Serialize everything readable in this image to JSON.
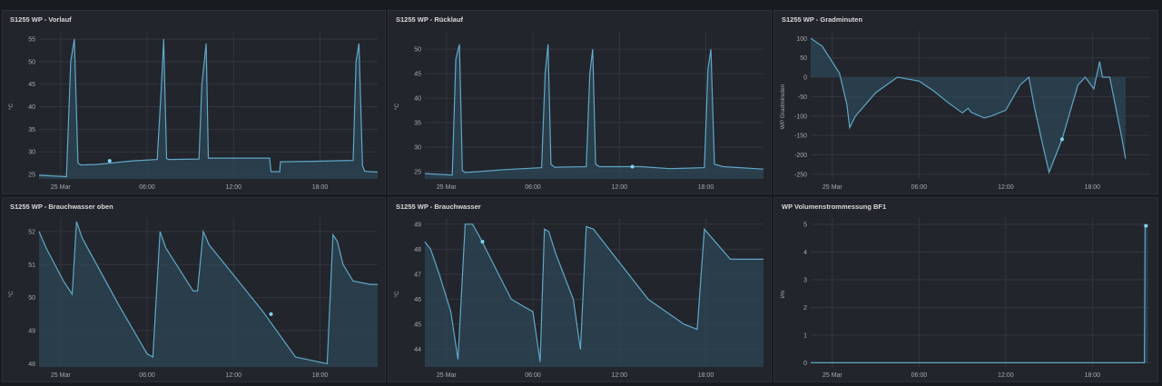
{
  "colors": {
    "line": "#5ea8c9",
    "fill": "#2e4655",
    "grid": "#32363d",
    "background": "#181b1f",
    "panel": "#22252b"
  },
  "x_tick_labels": [
    "25 Mar",
    "06:00",
    "12:00",
    "18:00"
  ],
  "panels": [
    {
      "title": "S1255 WP - Vorlauf",
      "chart_data": {
        "type": "area",
        "title": "S1255 WP - Vorlauf",
        "ylabel": "°C",
        "ylim": [
          24,
          56
        ],
        "y_ticks": [
          25,
          30,
          35,
          40,
          45,
          50,
          55
        ],
        "xlim": [
          -1.5,
          22
        ],
        "x_ticks": [
          {
            "x": 0,
            "label": "25 Mar"
          },
          {
            "x": 6,
            "label": "06:00"
          },
          {
            "x": 12,
            "label": "12:00"
          },
          {
            "x": 18,
            "label": "18:00"
          }
        ],
        "marker": {
          "x": 3.4,
          "y": 28
        },
        "x": [
          -1.5,
          0.4,
          0.7,
          0.95,
          1.2,
          1.4,
          2.5,
          5.0,
          6.7,
          7.0,
          7.15,
          7.35,
          7.5,
          9.6,
          9.8,
          10.1,
          10.25,
          10.35,
          14.5,
          14.6,
          15.2,
          15.25,
          17.5,
          20.3,
          20.5,
          20.7,
          20.95,
          21.1,
          22
        ],
        "values": [
          24.8,
          24.5,
          50,
          55,
          27.5,
          27.1,
          27.2,
          28.0,
          28.3,
          45,
          55,
          28.5,
          28.3,
          28.4,
          45,
          54,
          28.6,
          28.6,
          28.6,
          25.6,
          25.6,
          27.8,
          27.9,
          28.1,
          50,
          54,
          27.0,
          25.7,
          25.5
        ]
      }
    },
    {
      "title": "S1255 WP - Rücklauf",
      "chart_data": {
        "type": "area",
        "title": "S1255 WP - Rücklauf",
        "ylabel": "°C",
        "ylim": [
          23.5,
          53
        ],
        "y_ticks": [
          25,
          30,
          35,
          40,
          45,
          50
        ],
        "xlim": [
          -1.5,
          22
        ],
        "x_ticks": [
          {
            "x": 0,
            "label": "25 Mar"
          },
          {
            "x": 6,
            "label": "06:00"
          },
          {
            "x": 12,
            "label": "12:00"
          },
          {
            "x": 18,
            "label": "18:00"
          }
        ],
        "marker": {
          "x": 12.9,
          "y": 26
        },
        "x": [
          -1.5,
          0.4,
          0.65,
          0.9,
          1.1,
          1.3,
          4.0,
          6.6,
          6.85,
          7.05,
          7.25,
          7.5,
          9.7,
          9.95,
          10.15,
          10.35,
          10.6,
          13.5,
          15.5,
          17.9,
          18.15,
          18.35,
          18.6,
          19.2,
          22
        ],
        "values": [
          24.6,
          24.3,
          48,
          51,
          25.2,
          24.8,
          25.4,
          25.8,
          45,
          51,
          26.5,
          25.9,
          26.0,
          45,
          50,
          26.5,
          26.0,
          26.0,
          25.6,
          25.8,
          46,
          50,
          26.5,
          26.0,
          25.5
        ]
      }
    },
    {
      "title": "S1255 WP - Gradminuten",
      "chart_data": {
        "type": "area",
        "title": "S1255 WP - Gradminuten",
        "ylabel": "WP Gradminuten",
        "ylim": [
          -262,
          110
        ],
        "y_ticks": [
          100,
          50,
          0,
          -50,
          -100,
          -150,
          -200,
          -250
        ],
        "xlim": [
          -1.5,
          22
        ],
        "x_ticks": [
          {
            "x": 0,
            "label": "25 Mar"
          },
          {
            "x": 6,
            "label": "06:00"
          },
          {
            "x": 12,
            "label": "12:00"
          },
          {
            "x": 18,
            "label": "18:00"
          }
        ],
        "marker": {
          "x": 15.9,
          "y": -160
        },
        "x": [
          -1.5,
          -0.7,
          0.5,
          1.0,
          1.2,
          1.6,
          3.0,
          4.5,
          6.0,
          7.0,
          8.0,
          9.0,
          9.4,
          9.6,
          10.5,
          11.0,
          12.0,
          13.0,
          13.6,
          14.0,
          14.6,
          15.0,
          15.9,
          17.0,
          17.5,
          18.1,
          18.5,
          18.7,
          19.2,
          20.0,
          20.3
        ],
        "values": [
          100,
          80,
          10,
          -70,
          -130,
          -100,
          -40,
          0,
          -10,
          -35,
          -65,
          -92,
          -80,
          -90,
          -105,
          -100,
          -85,
          -20,
          0,
          -80,
          -180,
          -245,
          -160,
          -20,
          0,
          -30,
          40,
          0,
          0,
          -150,
          -210
        ]
      }
    },
    {
      "title": "S1255 WP - Brauchwasser oben",
      "chart_data": {
        "type": "area",
        "title": "S1255 WP - Brauchwasser oben",
        "ylabel": "°C",
        "ylim": [
          47.9,
          52.3
        ],
        "y_ticks": [
          48,
          49,
          50,
          51,
          52
        ],
        "xlim": [
          -1.5,
          22
        ],
        "x_ticks": [
          {
            "x": 0,
            "label": "25 Mar"
          },
          {
            "x": 6,
            "label": "06:00"
          },
          {
            "x": 12,
            "label": "12:00"
          },
          {
            "x": 18,
            "label": "18:00"
          }
        ],
        "marker": {
          "x": 14.6,
          "y": 49.5
        },
        "x": [
          -1.5,
          -1.0,
          0.2,
          0.8,
          1.1,
          1.5,
          4.0,
          6.0,
          6.4,
          6.9,
          7.3,
          9.2,
          9.5,
          9.9,
          10.3,
          14.0,
          16.3,
          18.5,
          18.9,
          19.2,
          19.6,
          20.3,
          21.5,
          22
        ],
        "values": [
          52.0,
          51.5,
          50.5,
          50.1,
          52.3,
          51.8,
          49.8,
          48.3,
          48.2,
          52.0,
          51.5,
          50.2,
          50.2,
          52.0,
          51.6,
          49.6,
          48.2,
          48.0,
          51.9,
          51.7,
          51.0,
          50.5,
          50.4,
          50.4
        ]
      }
    },
    {
      "title": "S1255 WP - Brauchwasser",
      "chart_data": {
        "type": "area",
        "title": "S1255 WP - Brauchwasser",
        "ylabel": "°C",
        "ylim": [
          43.3,
          49.1
        ],
        "y_ticks": [
          44,
          45,
          46,
          47,
          48,
          49
        ],
        "xlim": [
          -1.5,
          22
        ],
        "x_ticks": [
          {
            "x": 0,
            "label": "25 Mar"
          },
          {
            "x": 6,
            "label": "06:00"
          },
          {
            "x": 12,
            "label": "12:00"
          },
          {
            "x": 18,
            "label": "18:00"
          }
        ],
        "marker": {
          "x": 2.5,
          "y": 48.3
        },
        "x": [
          -1.5,
          -1.1,
          -0.5,
          0.3,
          0.8,
          1.3,
          1.8,
          2.3,
          4.5,
          6.0,
          6.5,
          6.8,
          7.1,
          7.6,
          8.8,
          9.3,
          9.7,
          10.2,
          14.0,
          16.5,
          17.4,
          17.9,
          18.5,
          19.7,
          22
        ],
        "values": [
          48.3,
          48.0,
          47.0,
          45.5,
          43.6,
          49.0,
          49.0,
          48.5,
          46.0,
          45.5,
          43.5,
          48.8,
          48.7,
          47.8,
          46.0,
          44.0,
          48.9,
          48.8,
          46.0,
          45.0,
          44.8,
          48.8,
          48.4,
          47.6,
          47.6
        ]
      }
    },
    {
      "title": "WP Volumenstrommessung BF1",
      "chart_data": {
        "type": "area",
        "title": "WP Volumenstrommessung BF1",
        "ylabel": "l/m",
        "ylim": [
          -0.15,
          5.1
        ],
        "y_ticks": [
          0,
          1,
          2,
          3,
          4,
          5
        ],
        "xlim": [
          -1.5,
          22
        ],
        "x_ticks": [
          {
            "x": 0,
            "label": "25 Mar"
          },
          {
            "x": 6,
            "label": "06:00"
          },
          {
            "x": 12,
            "label": "12:00"
          },
          {
            "x": 18,
            "label": "18:00"
          }
        ],
        "marker": {
          "x": 21.7,
          "y": 4.95
        },
        "x": [
          -1.5,
          21.6,
          21.65,
          21.7,
          21.85
        ],
        "values": [
          0,
          0,
          4.95,
          4.95,
          4.95
        ]
      }
    }
  ]
}
